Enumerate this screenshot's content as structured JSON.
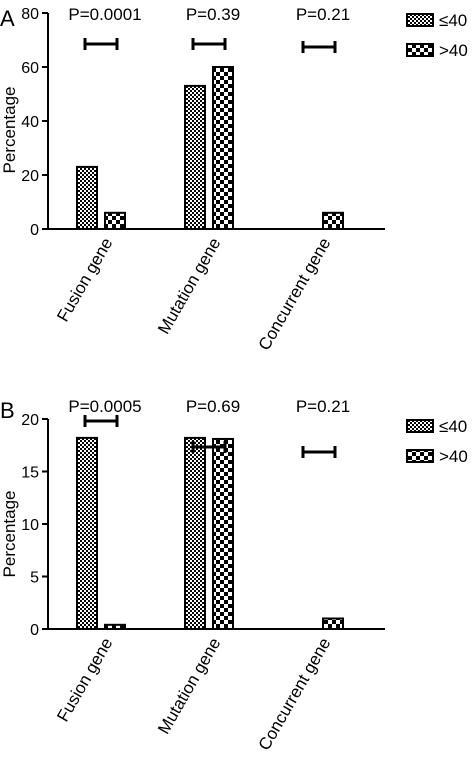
{
  "chart_data": [
    {
      "type": "bar",
      "panel_label": "A",
      "ylabel": "Percentage",
      "ylim": [
        0,
        80
      ],
      "yticks": [
        0,
        20,
        40,
        60,
        80
      ],
      "categories": [
        "Fusion gene",
        "Mutation gene",
        "Concurrent gene"
      ],
      "series": [
        {
          "name": "≤40",
          "pattern": "dense-checker",
          "values": [
            23,
            53,
            0
          ]
        },
        {
          "name": ">40",
          "pattern": "coarse-checker",
          "values": [
            6,
            60,
            6
          ]
        }
      ],
      "annotations": [
        "P=0.0001",
        "P=0.39",
        "P=0.21"
      ],
      "legend_position": "top-right"
    },
    {
      "type": "bar",
      "panel_label": "B",
      "ylabel": "Percentage",
      "ylim": [
        0,
        20
      ],
      "yticks": [
        0,
        5,
        10,
        15,
        20
      ],
      "categories": [
        "Fusion gene",
        "Mutation gene",
        "Concurrent gene"
      ],
      "series": [
        {
          "name": "≤40",
          "pattern": "dense-checker",
          "values": [
            18.2,
            18.2,
            0
          ]
        },
        {
          "name": ">40",
          "pattern": "coarse-checker",
          "values": [
            0.4,
            18.1,
            1
          ]
        }
      ],
      "annotations": [
        "P=0.0005",
        "P=0.69",
        "P=0.21"
      ],
      "legend_position": "top-right"
    }
  ]
}
